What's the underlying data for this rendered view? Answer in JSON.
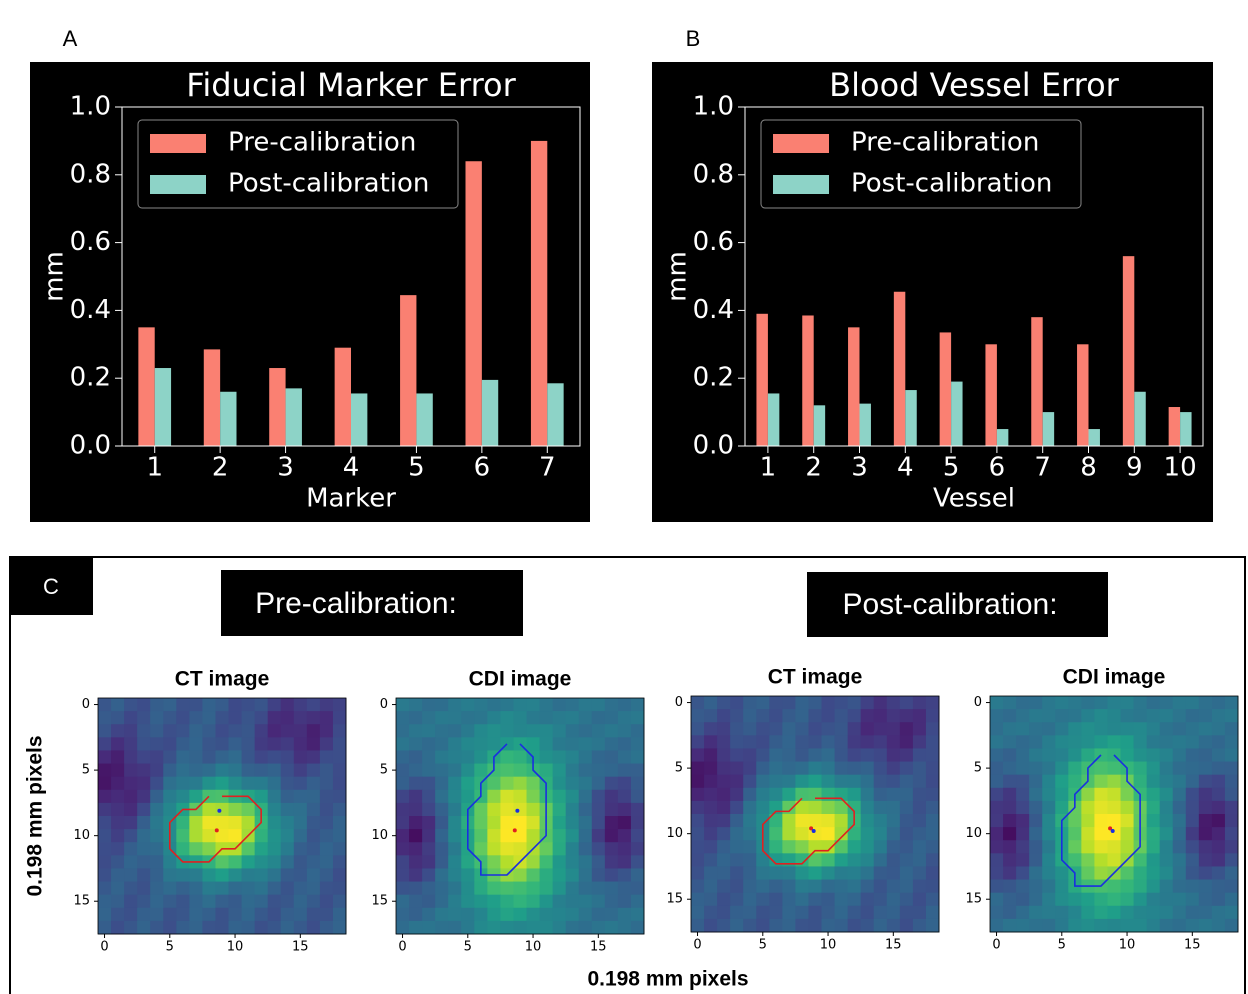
{
  "labels": {
    "panel_a": "A",
    "panel_b": "B",
    "panel_c": "C",
    "pre": "Pre-calibration:",
    "post": "Post-calibration:",
    "x_label": "0.198 mm pixels",
    "y_label": "0.198 mm pixels"
  },
  "chart_data": [
    {
      "type": "bar",
      "title": "Fiducial Marker Error",
      "x_label": "Marker",
      "y_label": "mm",
      "legend": "upper left",
      "categories": [
        "1",
        "2",
        "3",
        "4",
        "5",
        "6",
        "7"
      ],
      "series": [
        {
          "name": "Pre-calibration",
          "color": "#fa8072",
          "values": [
            0.35,
            0.285,
            0.23,
            0.29,
            0.445,
            0.84,
            0.9
          ]
        },
        {
          "name": "Post-calibration",
          "color": "#8dd3c7",
          "values": [
            0.23,
            0.16,
            0.17,
            0.155,
            0.155,
            0.195,
            0.185
          ]
        }
      ],
      "ylim": [
        0,
        1
      ],
      "yticks": [
        {
          "value": 0,
          "label": "0.0"
        },
        0.2,
        0.4,
        0.6,
        0.8,
        {
          "value": 1,
          "label": "1.0"
        }
      ]
    },
    {
      "type": "bar",
      "title": "Blood Vessel Error",
      "x_label": "Vessel",
      "y_label": "mm",
      "legend": "upper left",
      "categories": [
        "1",
        "2",
        "3",
        "4",
        "5",
        "6",
        "7",
        "8",
        "9",
        "10"
      ],
      "series": [
        {
          "name": "Pre-calibration",
          "color": "#fa8072",
          "values": [
            0.39,
            0.385,
            0.35,
            0.455,
            0.335,
            0.3,
            0.38,
            0.3,
            0.56,
            0.115
          ]
        },
        {
          "name": "Post-calibration",
          "color": "#8dd3c7",
          "values": [
            0.155,
            0.12,
            0.125,
            0.165,
            0.19,
            0.05,
            0.1,
            0.05,
            0.16,
            0.1
          ]
        }
      ],
      "ylim": [
        0,
        1
      ],
      "yticks": [
        {
          "value": 0,
          "label": "0.0"
        },
        0.2,
        0.4,
        0.6,
        0.8,
        {
          "value": 1,
          "label": "1.0"
        }
      ]
    },
    {
      "type": "image",
      "title": "CT image",
      "xlim": [
        -0.5,
        18.5
      ],
      "ylim": [
        17.5,
        -0.5
      ],
      "xticks": [
        0,
        5,
        10,
        15
      ],
      "yticks": [
        0,
        5,
        10,
        15
      ]
    },
    {
      "type": "image",
      "title": "CDI image",
      "xlim": [
        -0.5,
        18.5
      ],
      "ylim": [
        17.5,
        -0.5
      ],
      "xticks": [
        0,
        5,
        10,
        15
      ],
      "yticks": [
        0,
        5,
        10,
        15
      ]
    },
    {
      "type": "image",
      "title": "CT image",
      "xlim": [
        -0.5,
        18.5
      ],
      "ylim": [
        17.5,
        -0.5
      ],
      "xticks": [
        0,
        5,
        10,
        15
      ],
      "yticks": [
        0,
        5,
        10,
        15
      ]
    },
    {
      "type": "image",
      "title": "CDI image",
      "xlim": [
        -0.5,
        18.5
      ],
      "ylim": [
        17.5,
        -0.5
      ],
      "xticks": [
        0,
        5,
        10,
        15
      ],
      "yticks": [
        0,
        5,
        10,
        15
      ]
    }
  ]
}
